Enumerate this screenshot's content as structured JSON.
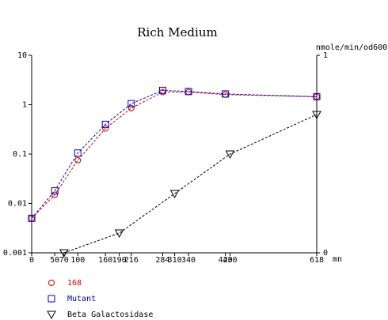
{
  "chart_data": {
    "type": "line",
    "title": "Rich Medium",
    "xlabel": "mn",
    "y2label": "nmole/min/od600",
    "xlim": [
      0,
      618
    ],
    "xticks": [
      0,
      50,
      70,
      100,
      160,
      190,
      216,
      284,
      310,
      340,
      420,
      430,
      618
    ],
    "ylog": true,
    "ylim": [
      0.001,
      10
    ],
    "yticks": [
      10,
      1,
      0.1,
      0.01,
      0.001
    ],
    "y2lim": [
      0,
      1
    ],
    "y2ticks": [
      0,
      1
    ],
    "series": [
      {
        "name": "168",
        "color": "#d00000",
        "marker": "circle",
        "x": [
          0,
          50,
          100,
          160,
          216,
          284,
          340,
          420,
          618
        ],
        "values": [
          0.005,
          0.015,
          0.075,
          0.33,
          0.85,
          1.8,
          1.8,
          1.6,
          1.45
        ]
      },
      {
        "name": "Mutant",
        "color": "#0000c0",
        "marker": "square",
        "x": [
          0,
          50,
          100,
          160,
          216,
          284,
          340,
          420,
          618
        ],
        "values": [
          0.005,
          0.018,
          0.105,
          0.4,
          1.05,
          1.95,
          1.85,
          1.65,
          1.45
        ]
      },
      {
        "name": "Beta Galactosidase",
        "color": "#000000",
        "marker": "triangle-down",
        "axis": "y2",
        "x": [
          70,
          190,
          310,
          430,
          618
        ],
        "values": [
          0,
          0.1,
          0.3,
          0.5,
          0.7
        ]
      }
    ]
  }
}
